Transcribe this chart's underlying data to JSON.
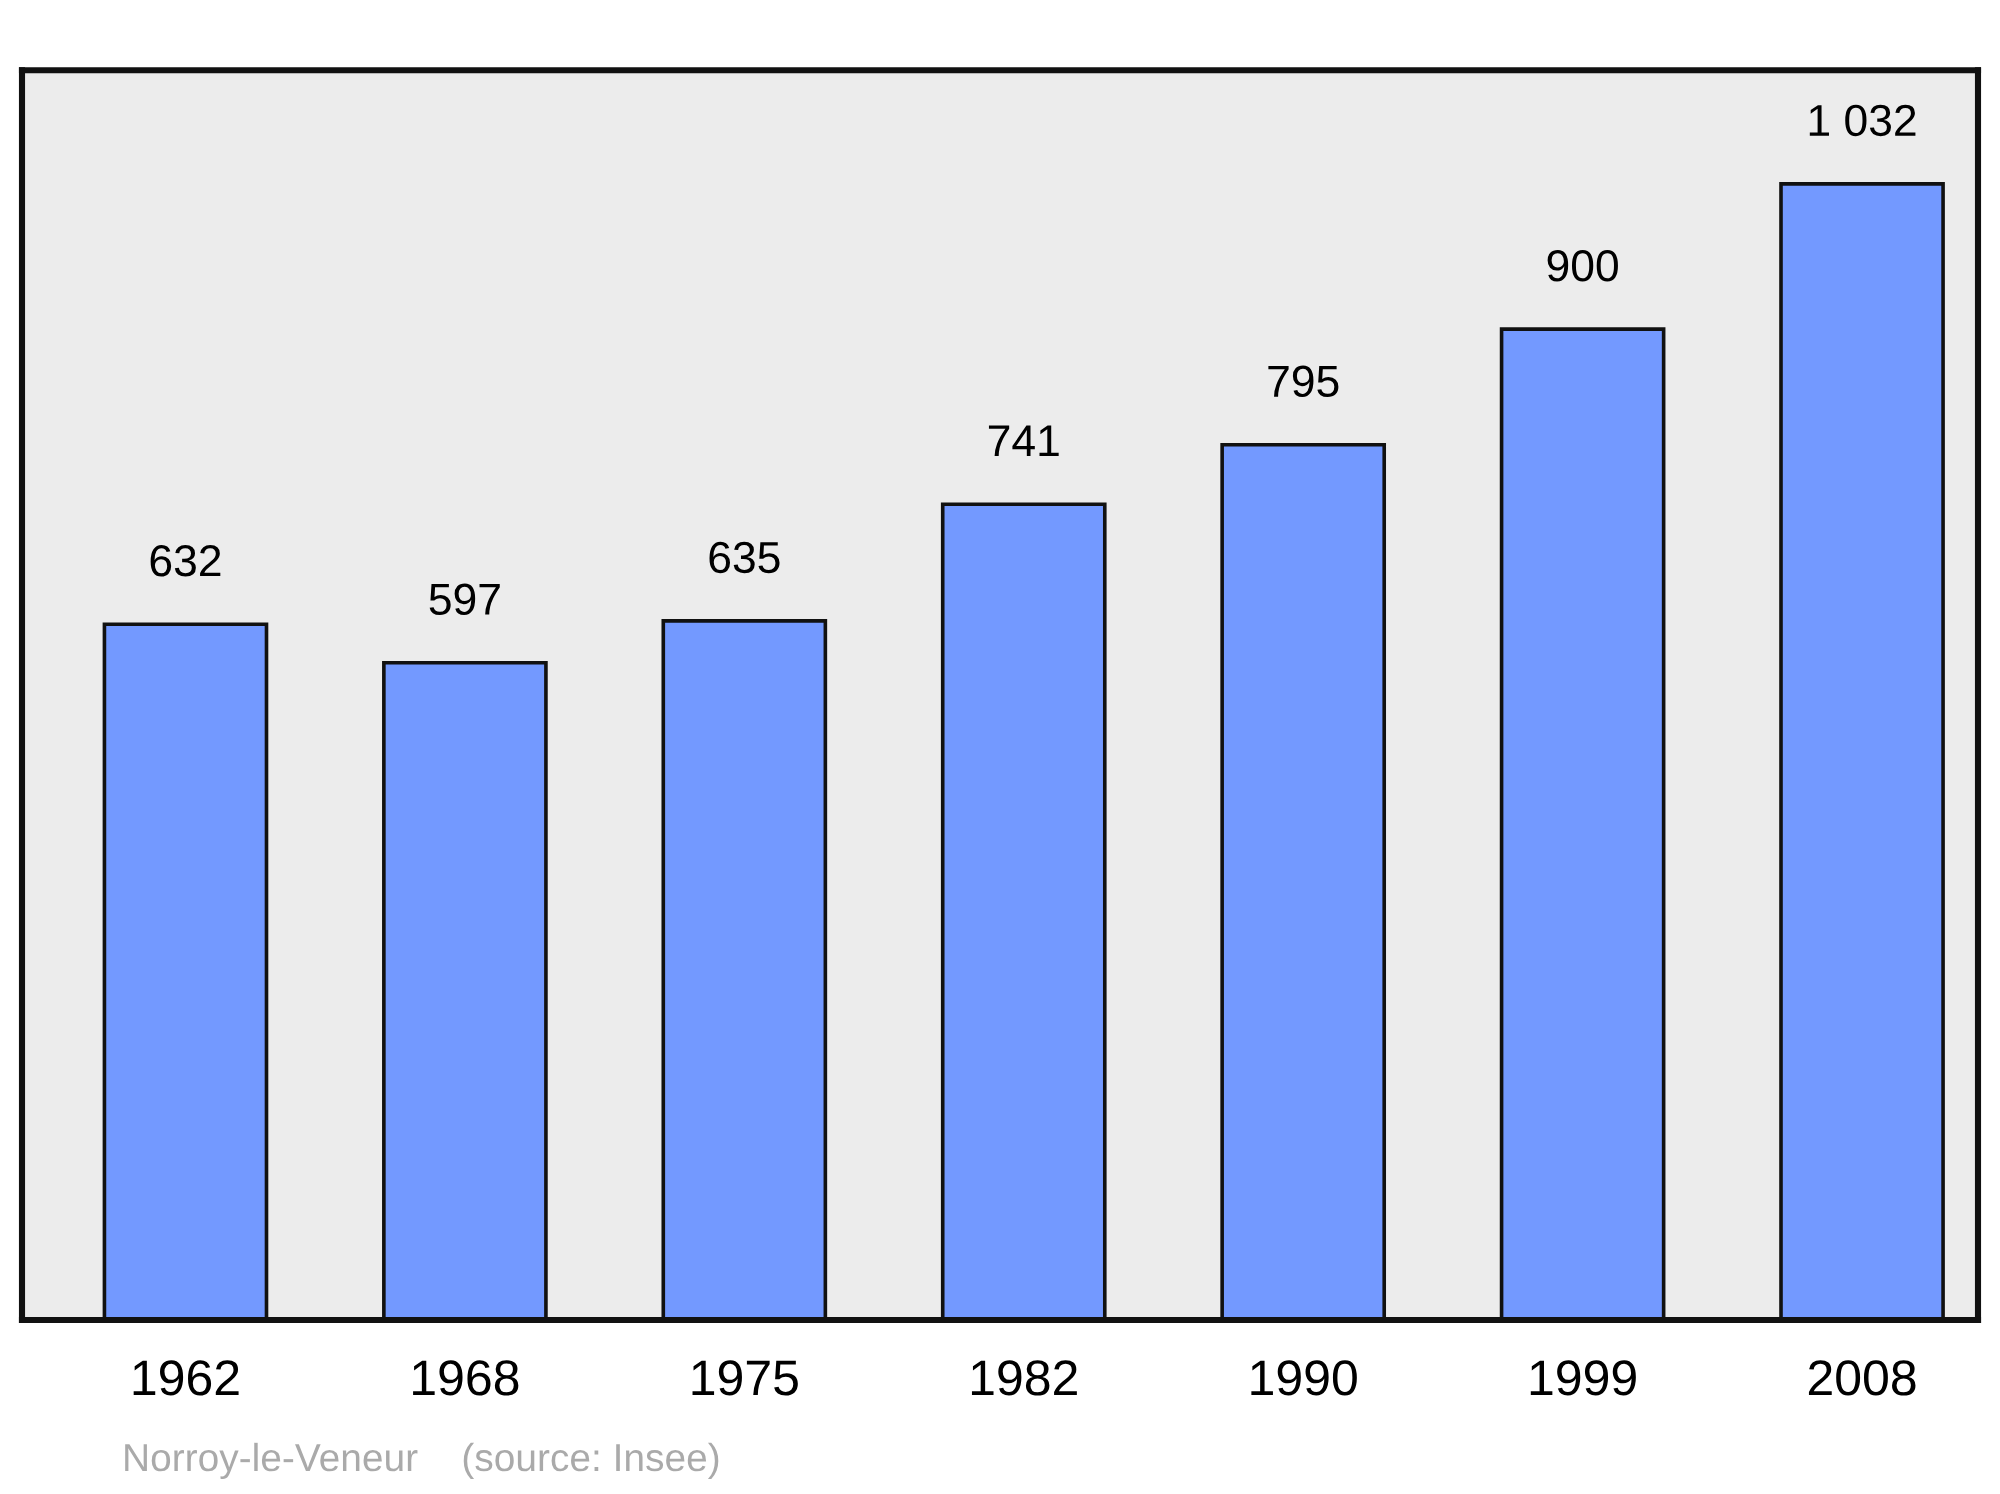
{
  "chart_data": {
    "type": "bar",
    "categories": [
      "1962",
      "1968",
      "1975",
      "1982",
      "1990",
      "1999",
      "2008"
    ],
    "values": [
      632,
      597,
      635,
      741,
      795,
      900,
      1032
    ],
    "value_labels": [
      "632",
      "597",
      "635",
      "741",
      "795",
      "900",
      "1 032"
    ],
    "color": "#7399ff",
    "annotations": [
      "Norroy-le-Veneur    (source: Insee)"
    ]
  }
}
